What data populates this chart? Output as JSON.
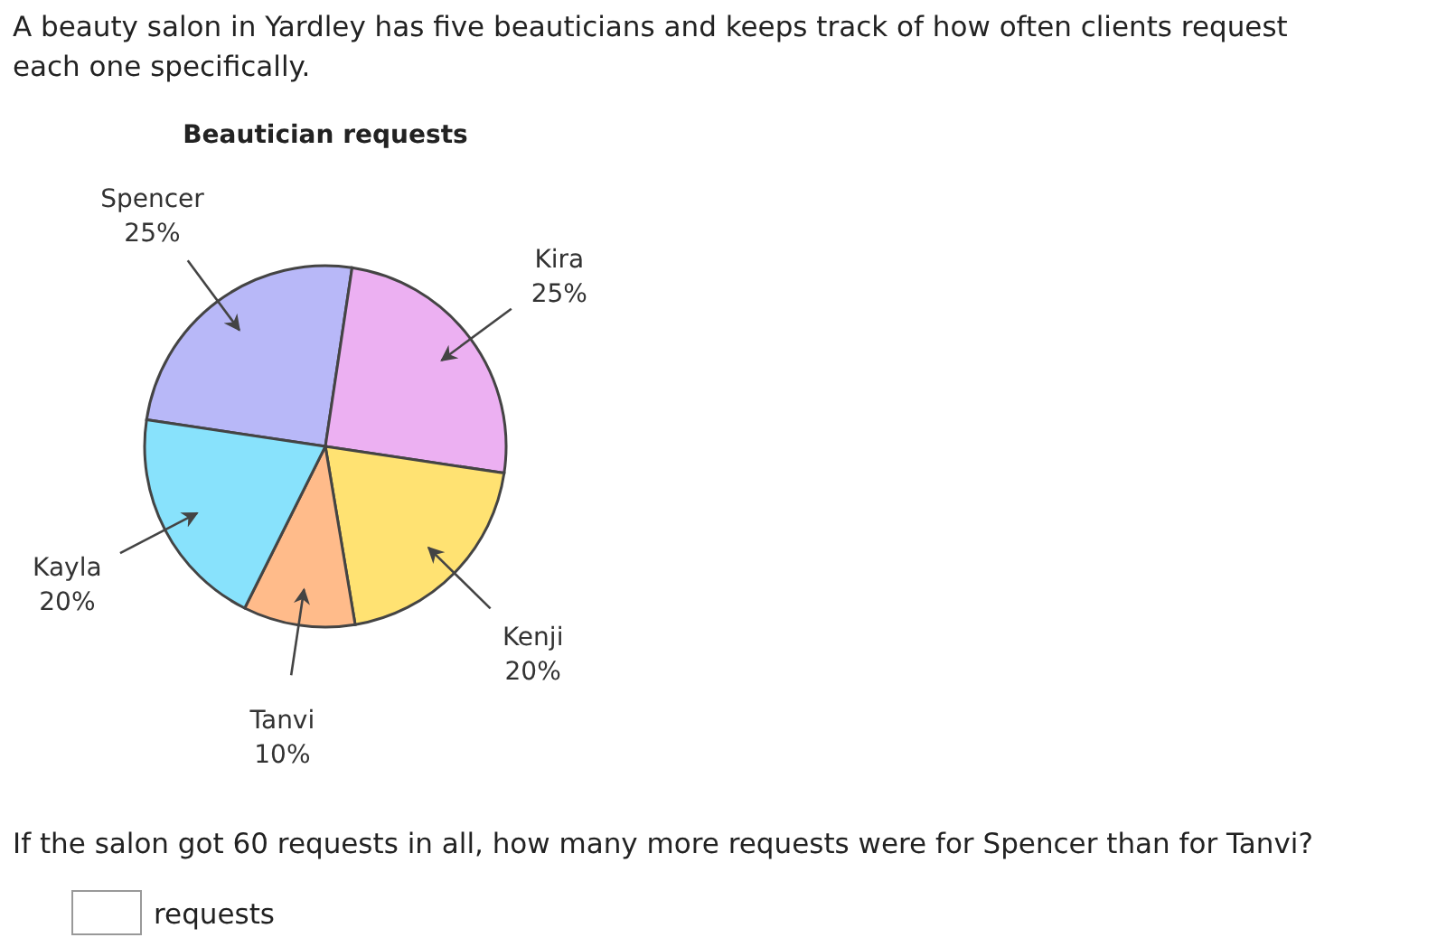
{
  "chart_data": {
    "type": "pie",
    "title": "Beautician requests",
    "categories": [
      "Spencer",
      "Kira",
      "Kenji",
      "Tanvi",
      "Kayla"
    ],
    "values": [
      25,
      25,
      20,
      10,
      20
    ],
    "colors": [
      "#b8b8f8",
      "#ecb0f2",
      "#ffe272",
      "#ffbb8a",
      "#88e2fc"
    ],
    "value_labels": [
      "25%",
      "25%",
      "20%",
      "10%",
      "20%"
    ],
    "annotations": [
      "A beauty salon in Yardley has five beauticians and keeps track of how often clients request each one specifically.",
      "If the salon got 60 requests in all, how many more requests were for Spencer than for Tanvi?",
      "requests"
    ]
  }
}
